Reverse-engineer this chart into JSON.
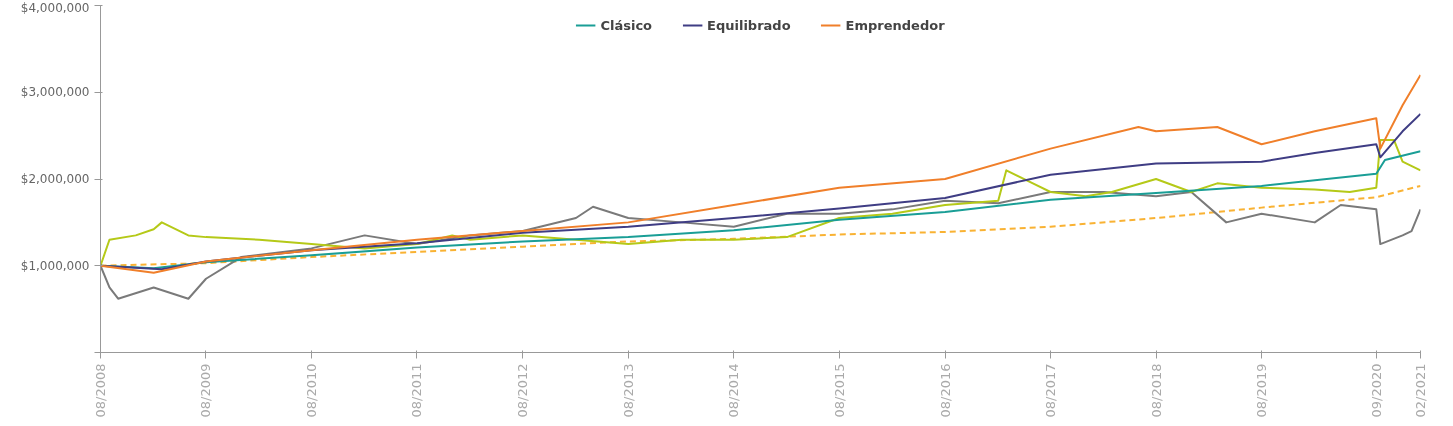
{
  "chart_data": {
    "type": "line",
    "legend": "top",
    "grid": false,
    "marker": "none",
    "xlim": [
      "2008-08",
      "2021-02"
    ],
    "ylim": [
      0,
      4000000
    ],
    "xticks": [
      {
        "value": "2008-08",
        "label": "08/2008"
      },
      {
        "value": "2009-08",
        "label": "08/2009"
      },
      {
        "value": "2010-08",
        "label": "08/2010"
      },
      {
        "value": "2011-08",
        "label": "08/2011"
      },
      {
        "value": "2012-08",
        "label": "08/2012"
      },
      {
        "value": "2013-08",
        "label": "08/2013"
      },
      {
        "value": "2014-08",
        "label": "08/2014"
      },
      {
        "value": "2015-08",
        "label": "08/2015"
      },
      {
        "value": "2016-08",
        "label": "08/2016"
      },
      {
        "value": "2017-08",
        "label": "08/2017"
      },
      {
        "value": "2018-08",
        "label": "08/2018"
      },
      {
        "value": "2019-08",
        "label": "08/2019"
      },
      {
        "value": "2020-09",
        "label": "09/2020"
      },
      {
        "value": "2021-02",
        "label": "02/2021"
      }
    ],
    "yticks": [
      {
        "value": 0,
        "label": null
      },
      {
        "value": 1000000,
        "label": "$1,000,000"
      },
      {
        "value": 2000000,
        "label": "$2,000,000"
      },
      {
        "value": 3000000,
        "label": "$3,000,000"
      },
      {
        "value": 4000000,
        "label": "$4,000,000"
      }
    ],
    "series": [
      {
        "color": "#f9b233",
        "line_style": "dashed",
        "x": [
          "2008-08",
          "2009-08",
          "2010-08",
          "2011-08",
          "2012-08",
          "2013-08",
          "2014-08",
          "2015-08",
          "2016-08",
          "2017-08",
          "2018-08",
          "2019-08",
          "2020-09",
          "2021-02"
        ],
        "values": [
          1000000,
          1030000,
          1100000,
          1160000,
          1220000,
          1280000,
          1310000,
          1360000,
          1390000,
          1450000,
          1550000,
          1670000,
          1790000,
          1920000
        ]
      },
      {
        "color": "#7a7a7a",
        "x": [
          "2008-08",
          "2008-09",
          "2008-10",
          "2009-02",
          "2009-06",
          "2009-08",
          "2009-12",
          "2010-08",
          "2011-02",
          "2011-08",
          "2012-02",
          "2012-08",
          "2013-02",
          "2013-04",
          "2013-08",
          "2014-02",
          "2014-08",
          "2015-02",
          "2015-08",
          "2016-02",
          "2016-08",
          "2017-02",
          "2017-08",
          "2018-02",
          "2018-08",
          "2018-12",
          "2019-04",
          "2019-08",
          "2020-02",
          "2020-05",
          "2020-09",
          "2020-09-15",
          "2020-12",
          "2021-01",
          "2021-02"
        ],
        "values": [
          1000000,
          750000,
          620000,
          750000,
          620000,
          850000,
          1100000,
          1200000,
          1350000,
          1250000,
          1350000,
          1400000,
          1550000,
          1680000,
          1550000,
          1500000,
          1450000,
          1600000,
          1600000,
          1650000,
          1750000,
          1720000,
          1850000,
          1850000,
          1800000,
          1850000,
          1500000,
          1600000,
          1500000,
          1700000,
          1650000,
          1250000,
          1350000,
          1400000,
          1650000
        ]
      },
      {
        "color": "#b5c918",
        "x": [
          "2008-08",
          "2008-09",
          "2008-12",
          "2009-02",
          "2009-03",
          "2009-06",
          "2009-08",
          "2010-02",
          "2010-08",
          "2011-02",
          "2011-08",
          "2011-12",
          "2012-02",
          "2012-08",
          "2013-02",
          "2013-08",
          "2014-02",
          "2014-08",
          "2015-02",
          "2015-08",
          "2016-02",
          "2016-08",
          "2017-02",
          "2017-03",
          "2017-06",
          "2017-08",
          "2017-12",
          "2018-03",
          "2018-08",
          "2018-12",
          "2019-03",
          "2019-08",
          "2020-02",
          "2020-06",
          "2020-09",
          "2020-09-15",
          "2020-11",
          "2020-12",
          "2021-02"
        ],
        "values": [
          1000000,
          1300000,
          1350000,
          1420000,
          1500000,
          1350000,
          1330000,
          1300000,
          1250000,
          1200000,
          1250000,
          1350000,
          1300000,
          1350000,
          1300000,
          1250000,
          1300000,
          1300000,
          1330000,
          1550000,
          1600000,
          1700000,
          1750000,
          2100000,
          1950000,
          1850000,
          1800000,
          1850000,
          2000000,
          1850000,
          1950000,
          1900000,
          1880000,
          1850000,
          1900000,
          2450000,
          2450000,
          2200000,
          2100000
        ]
      },
      {
        "name": "Clásico",
        "color": "#1a9e96",
        "x": [
          "2008-08",
          "2009-02",
          "2009-08",
          "2010-08",
          "2011-08",
          "2012-08",
          "2013-08",
          "2014-08",
          "2015-08",
          "2016-08",
          "2017-08",
          "2018-08",
          "2019-08",
          "2020-09",
          "2020-10",
          "2021-02"
        ],
        "values": [
          1000000,
          970000,
          1040000,
          1120000,
          1210000,
          1280000,
          1330000,
          1410000,
          1530000,
          1620000,
          1760000,
          1840000,
          1920000,
          2060000,
          2220000,
          2320000
        ]
      },
      {
        "name": "Equilibrado",
        "color": "#3f3d84",
        "x": [
          "2008-08",
          "2009-03",
          "2009-08",
          "2010-08",
          "2011-08",
          "2012-08",
          "2013-08",
          "2014-08",
          "2015-08",
          "2016-08",
          "2017-08",
          "2018-08",
          "2019-08",
          "2020-02",
          "2020-09",
          "2020-09-15",
          "2020-12",
          "2021-02"
        ],
        "values": [
          1000000,
          960000,
          1050000,
          1180000,
          1260000,
          1380000,
          1450000,
          1550000,
          1660000,
          1780000,
          2050000,
          2180000,
          2200000,
          2300000,
          2400000,
          2250000,
          2550000,
          2750000
        ]
      },
      {
        "name": "Emprendedor",
        "color": "#f07f2a",
        "x": [
          "2008-08",
          "2009-02",
          "2009-08",
          "2010-08",
          "2011-08",
          "2012-08",
          "2013-08",
          "2014-08",
          "2015-08",
          "2016-08",
          "2017-08",
          "2018-06",
          "2018-08",
          "2019-03",
          "2019-08",
          "2020-02",
          "2020-09",
          "2020-09-15",
          "2020-12",
          "2021-02"
        ],
        "values": [
          1000000,
          920000,
          1050000,
          1180000,
          1300000,
          1400000,
          1500000,
          1700000,
          1900000,
          2000000,
          2350000,
          2600000,
          2550000,
          2600000,
          2400000,
          2550000,
          2700000,
          2350000,
          2850000,
          3200000
        ]
      }
    ]
  }
}
